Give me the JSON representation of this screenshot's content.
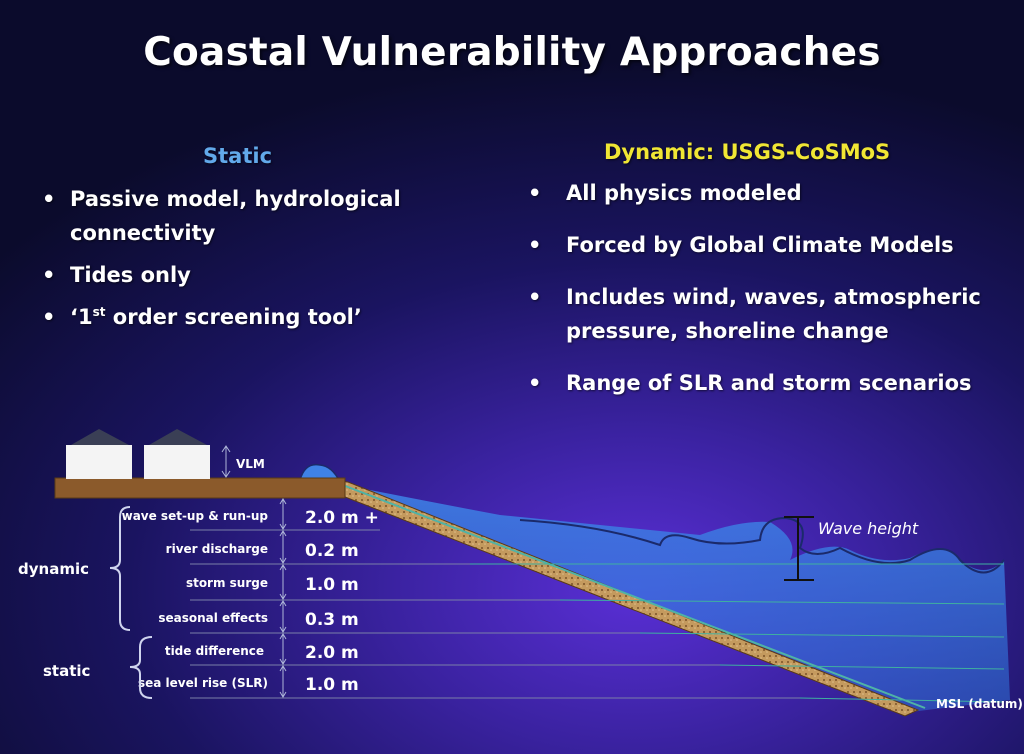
{
  "title": "Coastal Vulnerability Approaches",
  "static": {
    "heading": "Static",
    "bullets": [
      "Passive model, hydrological connectivity",
      "Tides only",
      "‘1st order screening tool’"
    ]
  },
  "dynamic": {
    "heading": "Dynamic: USGS-CoSMoS",
    "bullets": [
      "All physics modeled",
      "Forced by Global Climate Models",
      "Includes wind, waves, atmospheric pressure, shoreline change",
      "Range of SLR and storm scenarios"
    ]
  },
  "diagram": {
    "vlm_label": "VLM",
    "wave_height_label": "Wave height",
    "msl_label": "MSL (datum)",
    "group_dynamic": "dynamic",
    "group_static": "static",
    "components": [
      {
        "name": "wave set-up & run-up",
        "value": "2.0 m +"
      },
      {
        "name": "river discharge",
        "value": "0.2 m"
      },
      {
        "name": "storm surge",
        "value": "1.0 m"
      },
      {
        "name": "seasonal effects",
        "value": "0.3 m"
      },
      {
        "name": "tide difference",
        "value": "2.0 m"
      },
      {
        "name": "sea level rise (SLR)",
        "value": "1.0 m"
      }
    ],
    "colors": {
      "ground": "#8b5a2b",
      "water": "#3d7fe0",
      "line": "#3fb0a0"
    }
  }
}
